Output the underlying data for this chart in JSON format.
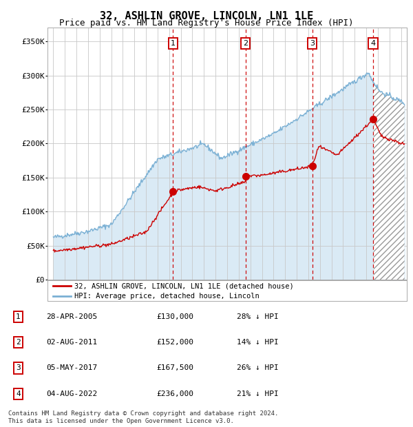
{
  "title": "32, ASHLIN GROVE, LINCOLN, LN1 1LE",
  "subtitle": "Price paid vs. HM Land Registry's House Price Index (HPI)",
  "title_fontsize": 11,
  "subtitle_fontsize": 9,
  "hpi_color": "#7ab0d4",
  "price_color": "#cc0000",
  "background_color": "#daeaf5",
  "plot_bg": "#ffffff",
  "grid_color": "#c8c8c8",
  "xlim": [
    1994.5,
    2025.5
  ],
  "ylim": [
    0,
    370000
  ],
  "yticks": [
    0,
    50000,
    100000,
    150000,
    200000,
    250000,
    300000,
    350000
  ],
  "ytick_labels": [
    "£0",
    "£50K",
    "£100K",
    "£150K",
    "£200K",
    "£250K",
    "£300K",
    "£350K"
  ],
  "sale_dates": [
    2005.32,
    2011.58,
    2017.34,
    2022.58
  ],
  "sale_prices": [
    130000,
    152000,
    167500,
    236000
  ],
  "sale_labels": [
    "1",
    "2",
    "3",
    "4"
  ],
  "legend_entries": [
    "32, ASHLIN GROVE, LINCOLN, LN1 1LE (detached house)",
    "HPI: Average price, detached house, Lincoln"
  ],
  "table_entries": [
    [
      "1",
      "28-APR-2005",
      "£130,000",
      "28% ↓ HPI"
    ],
    [
      "2",
      "02-AUG-2011",
      "£152,000",
      "14% ↓ HPI"
    ],
    [
      "3",
      "05-MAY-2017",
      "£167,500",
      "26% ↓ HPI"
    ],
    [
      "4",
      "04-AUG-2022",
      "£236,000",
      "21% ↓ HPI"
    ]
  ],
  "footnote": "Contains HM Land Registry data © Crown copyright and database right 2024.\nThis data is licensed under the Open Government Licence v3.0."
}
